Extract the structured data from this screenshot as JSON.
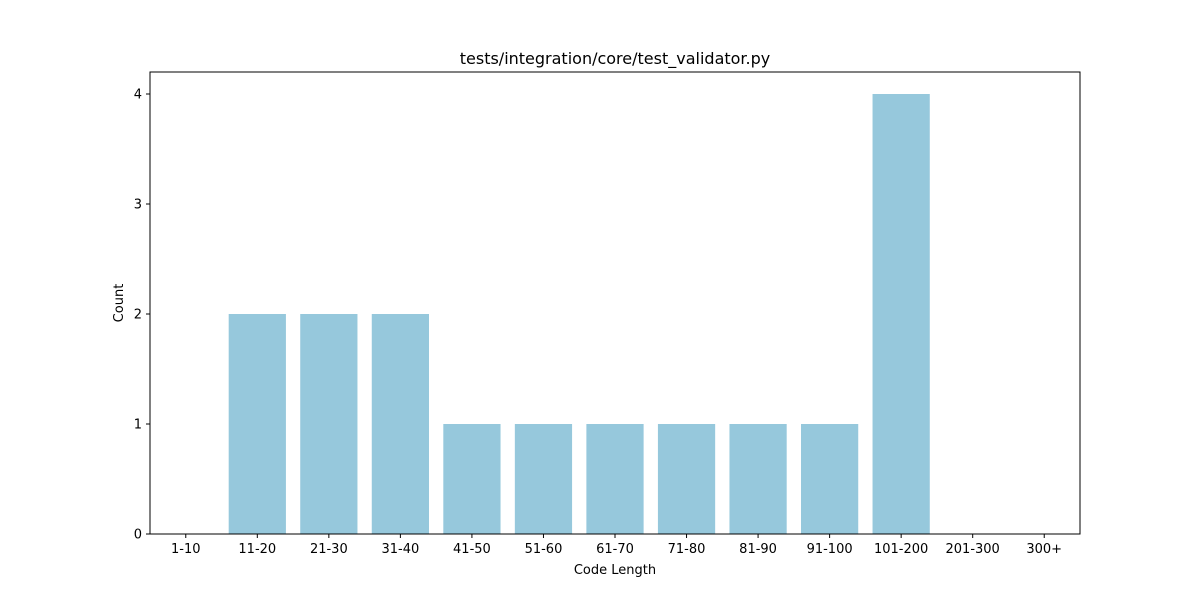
{
  "chart_data": {
    "type": "bar",
    "title": "tests/integration/core/test_validator.py",
    "xlabel": "Code Length",
    "ylabel": "Count",
    "categories": [
      "1-10",
      "11-20",
      "21-30",
      "31-40",
      "41-50",
      "51-60",
      "61-70",
      "71-80",
      "81-90",
      "91-100",
      "101-200",
      "201-300",
      "300+"
    ],
    "values": [
      0,
      2,
      2,
      2,
      1,
      1,
      1,
      1,
      1,
      1,
      4,
      0,
      0
    ],
    "ylim": [
      0,
      4.2
    ],
    "yticks": [
      0,
      1,
      2,
      3,
      4
    ],
    "grid": false,
    "bar_color": "#96c8dc"
  }
}
